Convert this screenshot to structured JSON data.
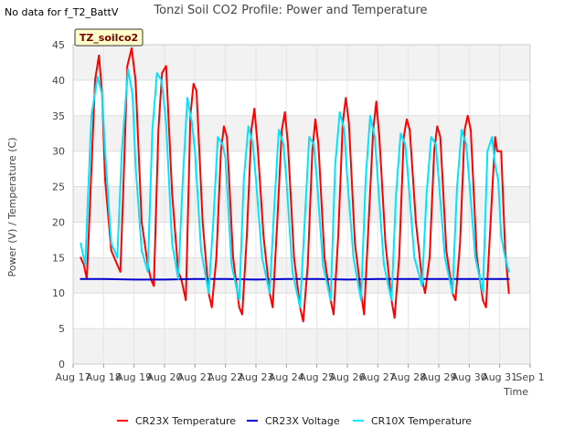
{
  "header": {
    "no_data_text": "No data for f_T2_BattV"
  },
  "badge": {
    "label": "TZ_soilco2",
    "background": "#ffffcc",
    "border": "#333333",
    "text_color": "#7a0000"
  },
  "chart_data": {
    "type": "line",
    "title": "Tonzi Soil CO2 Profile: Power and Temperature",
    "xlabel": "Time",
    "ylabel": "Power (V) / Temperature (C)",
    "xlim": [
      0,
      15
    ],
    "ylim": [
      0,
      45
    ],
    "x_tick_values": [
      0,
      1,
      2,
      3,
      4,
      5,
      6,
      7,
      8,
      9,
      10,
      11,
      12,
      13,
      14,
      15
    ],
    "x_tick_labels": [
      "Aug 17",
      "Aug 18",
      "Aug 19",
      "Aug 20",
      "Aug 21",
      "Aug 22",
      "Aug 23",
      "Aug 24",
      "Aug 25",
      "Aug 26",
      "Aug 27",
      "Aug 28",
      "Aug 29",
      "Aug 30",
      "Aug 31",
      "Sep 1"
    ],
    "y_ticks": [
      0,
      5,
      10,
      15,
      20,
      25,
      30,
      35,
      40,
      45
    ],
    "grid": true,
    "band_colors": [
      "#f2f2f2",
      "#ffffff"
    ],
    "legend_position": "bottom",
    "series": [
      {
        "name": "CR23X Temperature",
        "color": "#ff0000",
        "x": [
          0.25,
          0.35,
          0.45,
          0.55,
          0.72,
          0.85,
          0.95,
          1.05,
          1.25,
          1.45,
          1.55,
          1.65,
          1.78,
          1.92,
          2.05,
          2.25,
          2.45,
          2.55,
          2.65,
          2.8,
          2.92,
          3.05,
          3.25,
          3.45,
          3.55,
          3.7,
          3.85,
          3.95,
          4.05,
          4.25,
          4.45,
          4.55,
          4.7,
          4.85,
          4.95,
          5.05,
          5.25,
          5.45,
          5.55,
          5.7,
          5.85,
          5.95,
          6.05,
          6.25,
          6.45,
          6.55,
          6.7,
          6.85,
          6.95,
          7.05,
          7.25,
          7.45,
          7.55,
          7.7,
          7.85,
          7.95,
          8.05,
          8.25,
          8.45,
          8.55,
          8.7,
          8.85,
          8.95,
          9.05,
          9.25,
          9.45,
          9.55,
          9.7,
          9.85,
          9.95,
          10.05,
          10.25,
          10.45,
          10.55,
          10.7,
          10.85,
          10.95,
          11.05,
          11.25,
          11.45,
          11.55,
          11.7,
          11.85,
          11.95,
          12.05,
          12.25,
          12.45,
          12.55,
          12.7,
          12.85,
          12.95,
          13.05,
          13.25,
          13.45,
          13.55,
          13.7,
          13.85,
          13.92,
          14.05,
          14.18,
          14.3
        ],
        "values": [
          15.0,
          14.0,
          12.0,
          22.0,
          40.0,
          43.5,
          38.0,
          26.0,
          16.0,
          14.0,
          13.0,
          25.0,
          42.0,
          44.5,
          40.0,
          20.0,
          14.0,
          12.0,
          11.0,
          33.0,
          41.0,
          42.0,
          24.0,
          13.0,
          12.0,
          9.0,
          35.0,
          39.5,
          38.5,
          20.0,
          10.0,
          8.0,
          15.0,
          30.0,
          33.5,
          32.0,
          15.0,
          8.0,
          7.0,
          18.0,
          33.0,
          36.0,
          31.0,
          18.0,
          10.0,
          8.0,
          20.0,
          33.0,
          35.5,
          31.0,
          15.0,
          8.0,
          6.0,
          14.0,
          30.0,
          34.5,
          31.0,
          15.0,
          9.0,
          7.0,
          18.0,
          34.0,
          37.5,
          34.0,
          17.0,
          10.0,
          7.0,
          20.0,
          33.0,
          37.0,
          32.0,
          17.0,
          9.0,
          6.5,
          15.0,
          32.0,
          34.5,
          33.0,
          20.0,
          12.0,
          10.0,
          15.0,
          30.0,
          33.5,
          32.0,
          16.0,
          10.0,
          9.0,
          17.0,
          33.0,
          35.0,
          33.0,
          15.0,
          9.0,
          8.0,
          20.0,
          32.0,
          30.0,
          30.0,
          16.0,
          10.0
        ]
      },
      {
        "name": "CR23X Voltage",
        "color": "#0000cc",
        "x": [
          0.25,
          1.0,
          2.0,
          3.0,
          4.0,
          5.0,
          6.0,
          7.0,
          8.0,
          9.0,
          10.0,
          11.0,
          12.0,
          13.0,
          14.0,
          14.3
        ],
        "values": [
          12.0,
          12.0,
          11.9,
          11.9,
          12.0,
          12.0,
          11.9,
          12.0,
          12.0,
          11.9,
          12.0,
          12.0,
          12.0,
          12.0,
          12.0,
          12.0
        ]
      },
      {
        "name": "CR10X Temperature",
        "color": "#00e5ff",
        "x": [
          0.25,
          0.4,
          0.5,
          0.6,
          0.8,
          0.95,
          1.05,
          1.25,
          1.45,
          1.6,
          1.8,
          1.95,
          2.05,
          2.25,
          2.45,
          2.6,
          2.75,
          2.9,
          3.05,
          3.25,
          3.45,
          3.6,
          3.75,
          3.9,
          4.0,
          4.2,
          4.45,
          4.6,
          4.75,
          4.9,
          5.0,
          5.2,
          5.45,
          5.6,
          5.75,
          5.9,
          6.0,
          6.2,
          6.45,
          6.6,
          6.75,
          6.9,
          7.0,
          7.2,
          7.45,
          7.6,
          7.75,
          7.9,
          8.0,
          8.2,
          8.45,
          8.6,
          8.75,
          8.9,
          9.0,
          9.2,
          9.45,
          9.6,
          9.75,
          9.9,
          10.0,
          10.2,
          10.45,
          10.6,
          10.75,
          10.9,
          11.0,
          11.2,
          11.45,
          11.6,
          11.75,
          11.9,
          12.0,
          12.2,
          12.45,
          12.6,
          12.75,
          12.9,
          13.0,
          13.2,
          13.45,
          13.6,
          13.75,
          13.85,
          13.95,
          14.05,
          14.18,
          14.3
        ],
        "values": [
          17.0,
          14.0,
          25.0,
          35.0,
          40.5,
          38.0,
          30.0,
          17.0,
          15.0,
          30.0,
          41.5,
          38.0,
          28.0,
          16.0,
          13.0,
          33.0,
          41.0,
          40.0,
          34.0,
          17.0,
          12.0,
          26.0,
          37.5,
          34.0,
          30.0,
          16.0,
          10.0,
          20.0,
          32.0,
          31.0,
          29.0,
          14.0,
          9.0,
          26.0,
          33.5,
          31.0,
          26.0,
          15.0,
          10.0,
          22.0,
          33.0,
          31.0,
          26.0,
          13.0,
          8.0,
          20.0,
          32.0,
          31.0,
          26.0,
          14.0,
          9.0,
          28.0,
          35.5,
          33.0,
          26.0,
          15.0,
          9.0,
          26.0,
          35.0,
          32.0,
          26.0,
          14.0,
          9.0,
          24.0,
          32.5,
          31.0,
          26.0,
          15.0,
          11.0,
          24.0,
          32.0,
          31.0,
          26.0,
          15.0,
          10.0,
          25.0,
          33.0,
          31.0,
          26.0,
          15.0,
          10.0,
          30.0,
          32.0,
          28.0,
          26.0,
          18.0,
          15.0,
          13.0
        ]
      }
    ]
  }
}
